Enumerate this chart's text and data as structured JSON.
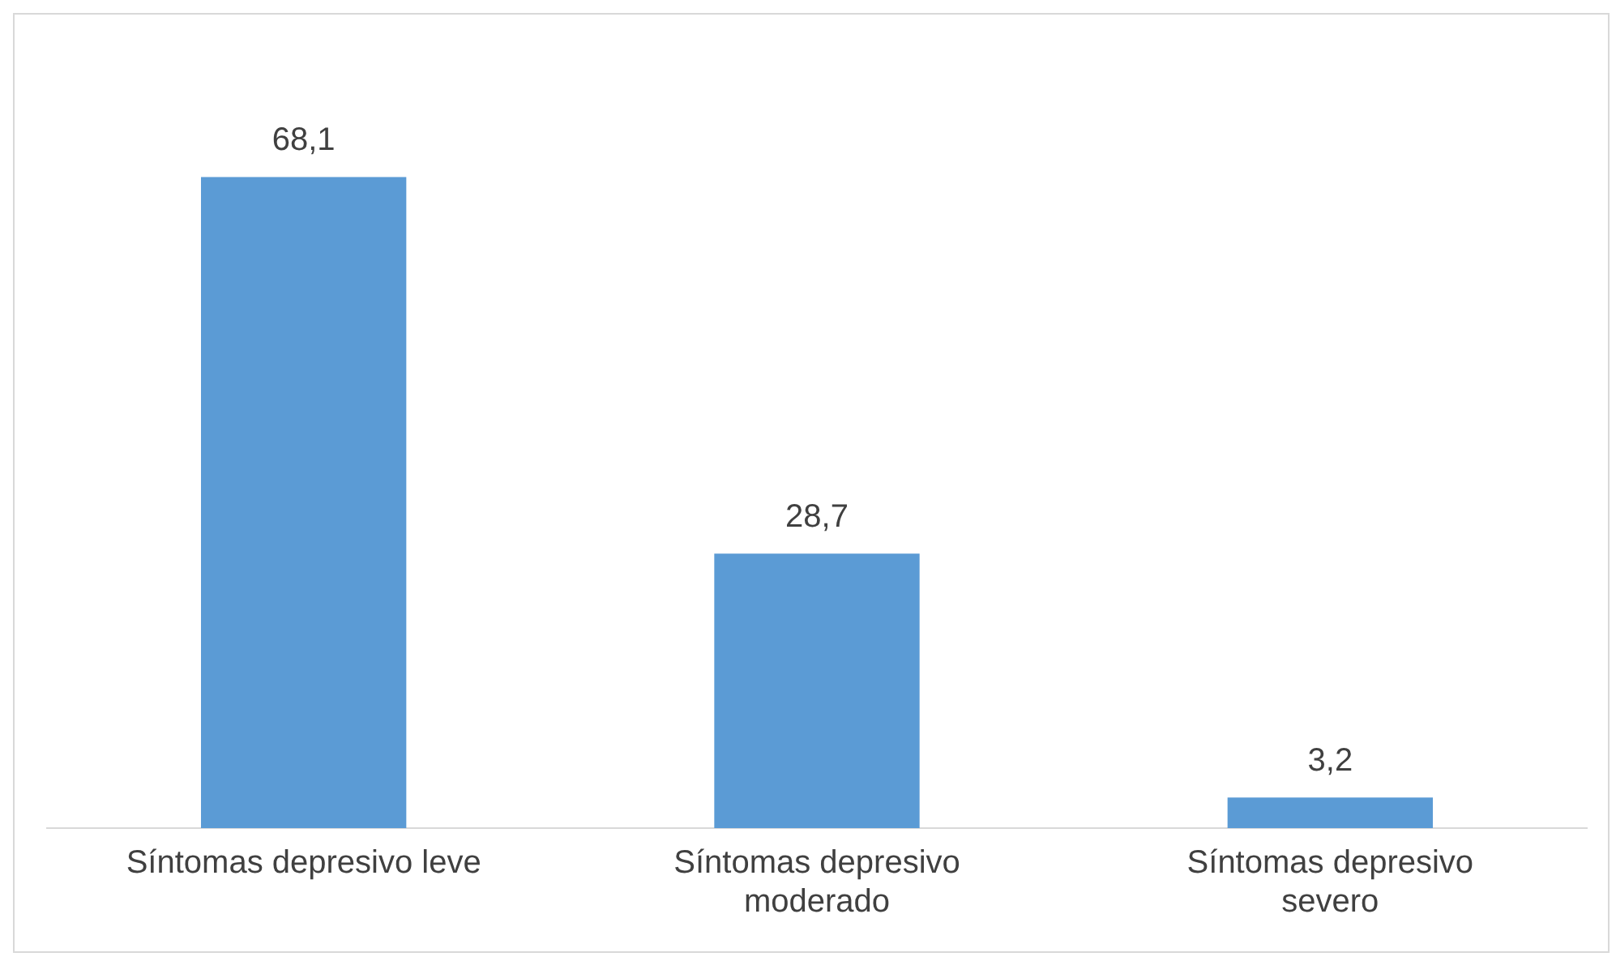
{
  "chart_data": {
    "type": "bar",
    "categories": [
      "Síntomas depresivo leve",
      "Síntomas depresivo moderado",
      "Síntomas depresivo severo"
    ],
    "values": [
      68.1,
      28.7,
      3.2
    ],
    "value_labels": [
      "68,1",
      "28,7",
      "3,2"
    ],
    "color": "#5b9bd5",
    "grid": false,
    "legend": false
  }
}
